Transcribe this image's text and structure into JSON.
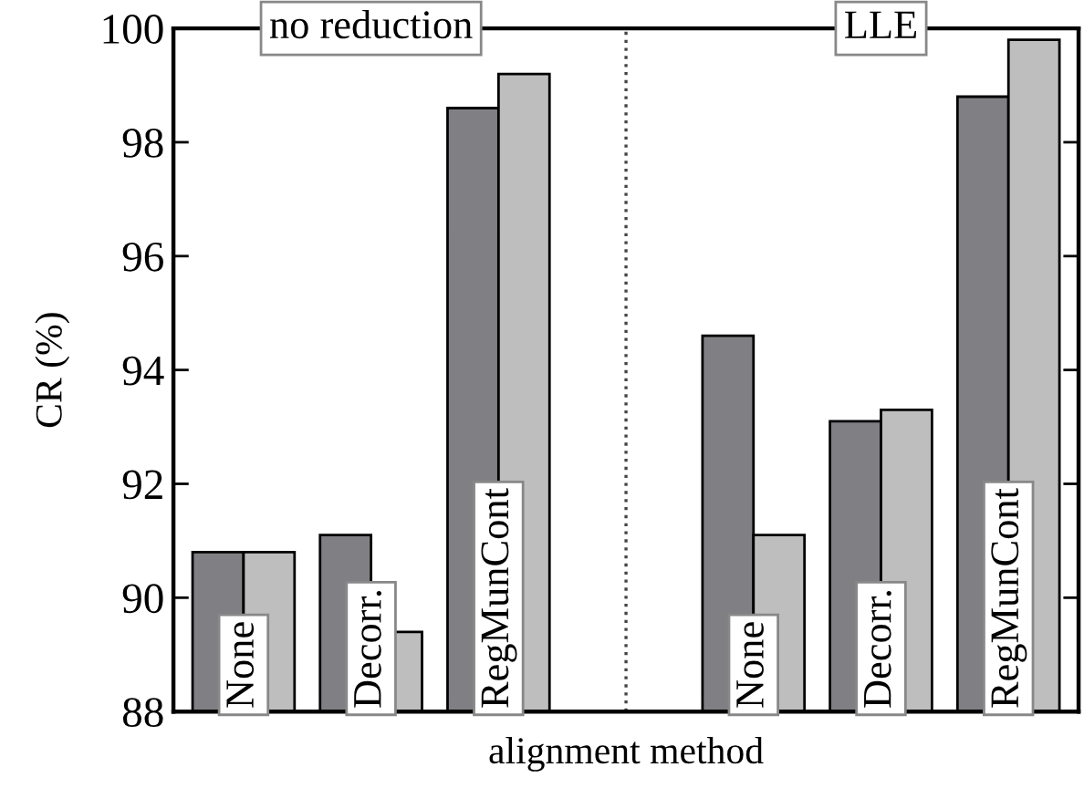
{
  "chart_data": {
    "type": "bar",
    "xlabel": "alignment method",
    "ylabel": "CR (%)",
    "categories": [
      "None",
      "Decorr.",
      "RegMunCont",
      null,
      "None",
      "Decorr.",
      "RegMunCont"
    ],
    "series": [
      {
        "color": "#808084",
        "values": [
          90.8,
          91.1,
          98.6,
          null,
          94.6,
          93.1,
          98.8
        ]
      },
      {
        "color": "#bebebe",
        "values": [
          90.8,
          89.4,
          99.2,
          null,
          91.1,
          93.3,
          99.8
        ]
      }
    ],
    "ylim": [
      88,
      100
    ],
    "yticks": [
      88,
      90,
      92,
      94,
      96,
      98,
      100
    ],
    "annotations": [
      "no reduction",
      "LLE"
    ]
  }
}
